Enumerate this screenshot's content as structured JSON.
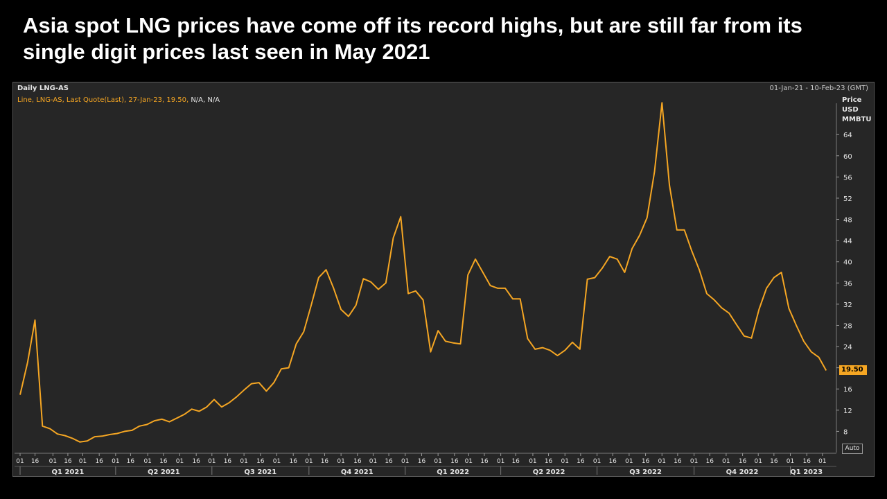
{
  "slide": {
    "title_line1": "Asia spot LNG prices have come off its record highs, but are still far from its",
    "title_line2": "single digit prices last seen in May 2021"
  },
  "chart": {
    "name": "Daily LNG-AS",
    "date_range": "01-Jan-21 - 10-Feb-23 (GMT)",
    "legend": "Line, LNG-AS, Last Quote(Last), 27-Jan-23, 19.50,",
    "legend_na": "N/A, N/A",
    "axis_head_line1": "Price",
    "axis_head_line2": "USD",
    "axis_head_line3": "MMBTU",
    "last_value_label": "19.50",
    "auto_label": "Auto"
  },
  "colors": {
    "line": "#f5a623",
    "background": "#262626",
    "grid": "#3a3a3a"
  },
  "chart_data": {
    "type": "line",
    "title": "Daily LNG-AS",
    "ylabel": "Price USD MMBTU",
    "xlabel": "",
    "ylim": [
      4,
      72
    ],
    "yticks": [
      8,
      12,
      16,
      20,
      24,
      28,
      32,
      36,
      40,
      44,
      48,
      52,
      56,
      60,
      64
    ],
    "last_value": 19.5,
    "xlim_weeks": [
      0,
      106
    ],
    "x_tick_labels": [
      {
        "w": 0,
        "label": "01"
      },
      {
        "w": 2,
        "label": "16"
      },
      {
        "w": 4.4,
        "label": "01"
      },
      {
        "w": 6.4,
        "label": "16"
      },
      {
        "w": 8.4,
        "label": "01"
      },
      {
        "w": 10.6,
        "label": "16"
      },
      {
        "w": 12.8,
        "label": "01"
      },
      {
        "w": 14.8,
        "label": "16"
      },
      {
        "w": 17.1,
        "label": "01"
      },
      {
        "w": 19.2,
        "label": "16"
      },
      {
        "w": 21.4,
        "label": "01"
      },
      {
        "w": 23.6,
        "label": "16"
      },
      {
        "w": 25.7,
        "label": "01"
      },
      {
        "w": 27.8,
        "label": "16"
      },
      {
        "w": 30,
        "label": "01"
      },
      {
        "w": 32.2,
        "label": "16"
      },
      {
        "w": 34.4,
        "label": "01"
      },
      {
        "w": 36.6,
        "label": "16"
      },
      {
        "w": 38.7,
        "label": "01"
      },
      {
        "w": 40.8,
        "label": "16"
      },
      {
        "w": 43,
        "label": "01"
      },
      {
        "w": 45.2,
        "label": "16"
      },
      {
        "w": 47.3,
        "label": "01"
      },
      {
        "w": 49.4,
        "label": "16"
      },
      {
        "w": 51.6,
        "label": "01"
      },
      {
        "w": 53.8,
        "label": "16"
      },
      {
        "w": 56,
        "label": "01"
      },
      {
        "w": 58.2,
        "label": "16"
      },
      {
        "w": 60.1,
        "label": "01"
      },
      {
        "w": 62.2,
        "label": "16"
      },
      {
        "w": 64.4,
        "label": "01"
      },
      {
        "w": 66.4,
        "label": "16"
      },
      {
        "w": 68.7,
        "label": "01"
      },
      {
        "w": 70.8,
        "label": "16"
      },
      {
        "w": 73,
        "label": "01"
      },
      {
        "w": 75.1,
        "label": "16"
      },
      {
        "w": 77.3,
        "label": "01"
      },
      {
        "w": 79.4,
        "label": "16"
      },
      {
        "w": 81.6,
        "label": "01"
      },
      {
        "w": 83.8,
        "label": "16"
      },
      {
        "w": 86,
        "label": "01"
      },
      {
        "w": 88.1,
        "label": "16"
      },
      {
        "w": 90.3,
        "label": "01"
      },
      {
        "w": 92.4,
        "label": "16"
      },
      {
        "w": 94.6,
        "label": "01"
      },
      {
        "w": 96.8,
        "label": "16"
      },
      {
        "w": 98.9,
        "label": "01"
      },
      {
        "w": 101,
        "label": "16"
      },
      {
        "w": 103.2,
        "label": "01"
      },
      {
        "w": 105.4,
        "label": "16"
      },
      {
        "w": 107.5,
        "label": "01"
      }
    ],
    "quarters": [
      {
        "label": "Q1 2021",
        "start": 0,
        "end": 12.8
      },
      {
        "label": "Q2 2021",
        "start": 12.8,
        "end": 25.7
      },
      {
        "label": "Q3 2021",
        "start": 25.7,
        "end": 38.7
      },
      {
        "label": "Q4 2021",
        "start": 38.7,
        "end": 51.6
      },
      {
        "label": "Q1 2022",
        "start": 51.6,
        "end": 64.4
      },
      {
        "label": "Q2 2022",
        "start": 64.4,
        "end": 77.3
      },
      {
        "label": "Q3 2022",
        "start": 77.3,
        "end": 90.3
      },
      {
        "label": "Q4 2022",
        "start": 90.3,
        "end": 103.2
      },
      {
        "label": "Q1 2023",
        "start": 103.2,
        "end": 107.5
      }
    ],
    "series": [
      {
        "name": "LNG-AS",
        "points": [
          [
            0,
            14.9
          ],
          [
            1,
            21
          ],
          [
            2,
            29
          ],
          [
            3,
            9
          ],
          [
            4,
            8.5
          ],
          [
            5,
            7.5
          ],
          [
            6,
            7.2
          ],
          [
            7,
            6.7
          ],
          [
            8,
            6
          ],
          [
            9,
            6.2
          ],
          [
            10,
            7
          ],
          [
            11,
            7.1
          ],
          [
            12,
            7.4
          ],
          [
            13,
            7.6
          ],
          [
            14,
            8
          ],
          [
            15,
            8.2
          ],
          [
            16,
            9
          ],
          [
            17,
            9.3
          ],
          [
            18,
            10
          ],
          [
            19,
            10.3
          ],
          [
            20,
            9.8
          ],
          [
            21,
            10.5
          ],
          [
            22,
            11.2
          ],
          [
            23,
            12.2
          ],
          [
            24,
            11.8
          ],
          [
            25,
            12.6
          ],
          [
            26,
            14
          ],
          [
            27,
            12.6
          ],
          [
            28,
            13.4
          ],
          [
            29,
            14.5
          ],
          [
            30,
            15.8
          ],
          [
            31,
            17
          ],
          [
            32,
            17.2
          ],
          [
            33,
            15.6
          ],
          [
            34,
            17.2
          ],
          [
            35,
            19.8
          ],
          [
            36,
            20
          ],
          [
            37,
            24.5
          ],
          [
            38,
            26.8
          ],
          [
            39,
            31.8
          ],
          [
            40,
            37
          ],
          [
            41,
            38.5
          ],
          [
            42,
            35
          ],
          [
            43,
            31
          ],
          [
            44,
            29.7
          ],
          [
            45,
            31.8
          ],
          [
            46,
            36.8
          ],
          [
            47,
            36.2
          ],
          [
            48,
            34.8
          ],
          [
            49,
            36
          ],
          [
            50,
            44.5
          ],
          [
            51,
            48.5
          ],
          [
            52,
            34
          ],
          [
            53,
            34.5
          ],
          [
            54,
            32.8
          ],
          [
            55,
            23
          ],
          [
            56,
            27
          ],
          [
            57,
            25
          ],
          [
            58,
            24.7
          ],
          [
            59,
            24.5
          ],
          [
            60,
            37.5
          ],
          [
            61,
            40.5
          ],
          [
            62,
            38
          ],
          [
            63,
            35.5
          ],
          [
            64,
            35
          ],
          [
            65,
            35
          ],
          [
            66,
            33
          ],
          [
            67,
            33
          ],
          [
            68,
            25.5
          ],
          [
            69,
            23.5
          ],
          [
            70,
            23.8
          ],
          [
            71,
            23.3
          ],
          [
            72,
            22.3
          ],
          [
            73,
            23.3
          ],
          [
            74,
            24.8
          ],
          [
            75,
            23.5
          ],
          [
            76,
            36.7
          ],
          [
            77,
            37
          ],
          [
            78,
            38.8
          ],
          [
            79,
            41
          ],
          [
            80,
            40.5
          ],
          [
            81,
            38
          ],
          [
            82,
            42.5
          ],
          [
            83,
            45
          ],
          [
            84,
            48.3
          ],
          [
            85,
            57
          ],
          [
            86,
            70
          ],
          [
            87,
            54.5
          ],
          [
            88,
            46
          ],
          [
            89,
            46
          ],
          [
            90,
            42
          ],
          [
            91,
            38.5
          ],
          [
            92,
            34
          ],
          [
            93,
            32.8
          ],
          [
            94,
            31.3
          ],
          [
            95,
            30.3
          ],
          [
            96,
            28.1
          ],
          [
            97,
            26
          ],
          [
            98,
            25.6
          ],
          [
            99,
            31
          ],
          [
            100,
            35
          ],
          [
            101,
            37
          ],
          [
            102,
            38
          ],
          [
            103,
            31.2
          ],
          [
            104,
            28
          ],
          [
            105,
            25
          ],
          [
            106,
            23
          ],
          [
            107,
            22
          ],
          [
            108,
            19.5
          ]
        ]
      }
    ]
  }
}
